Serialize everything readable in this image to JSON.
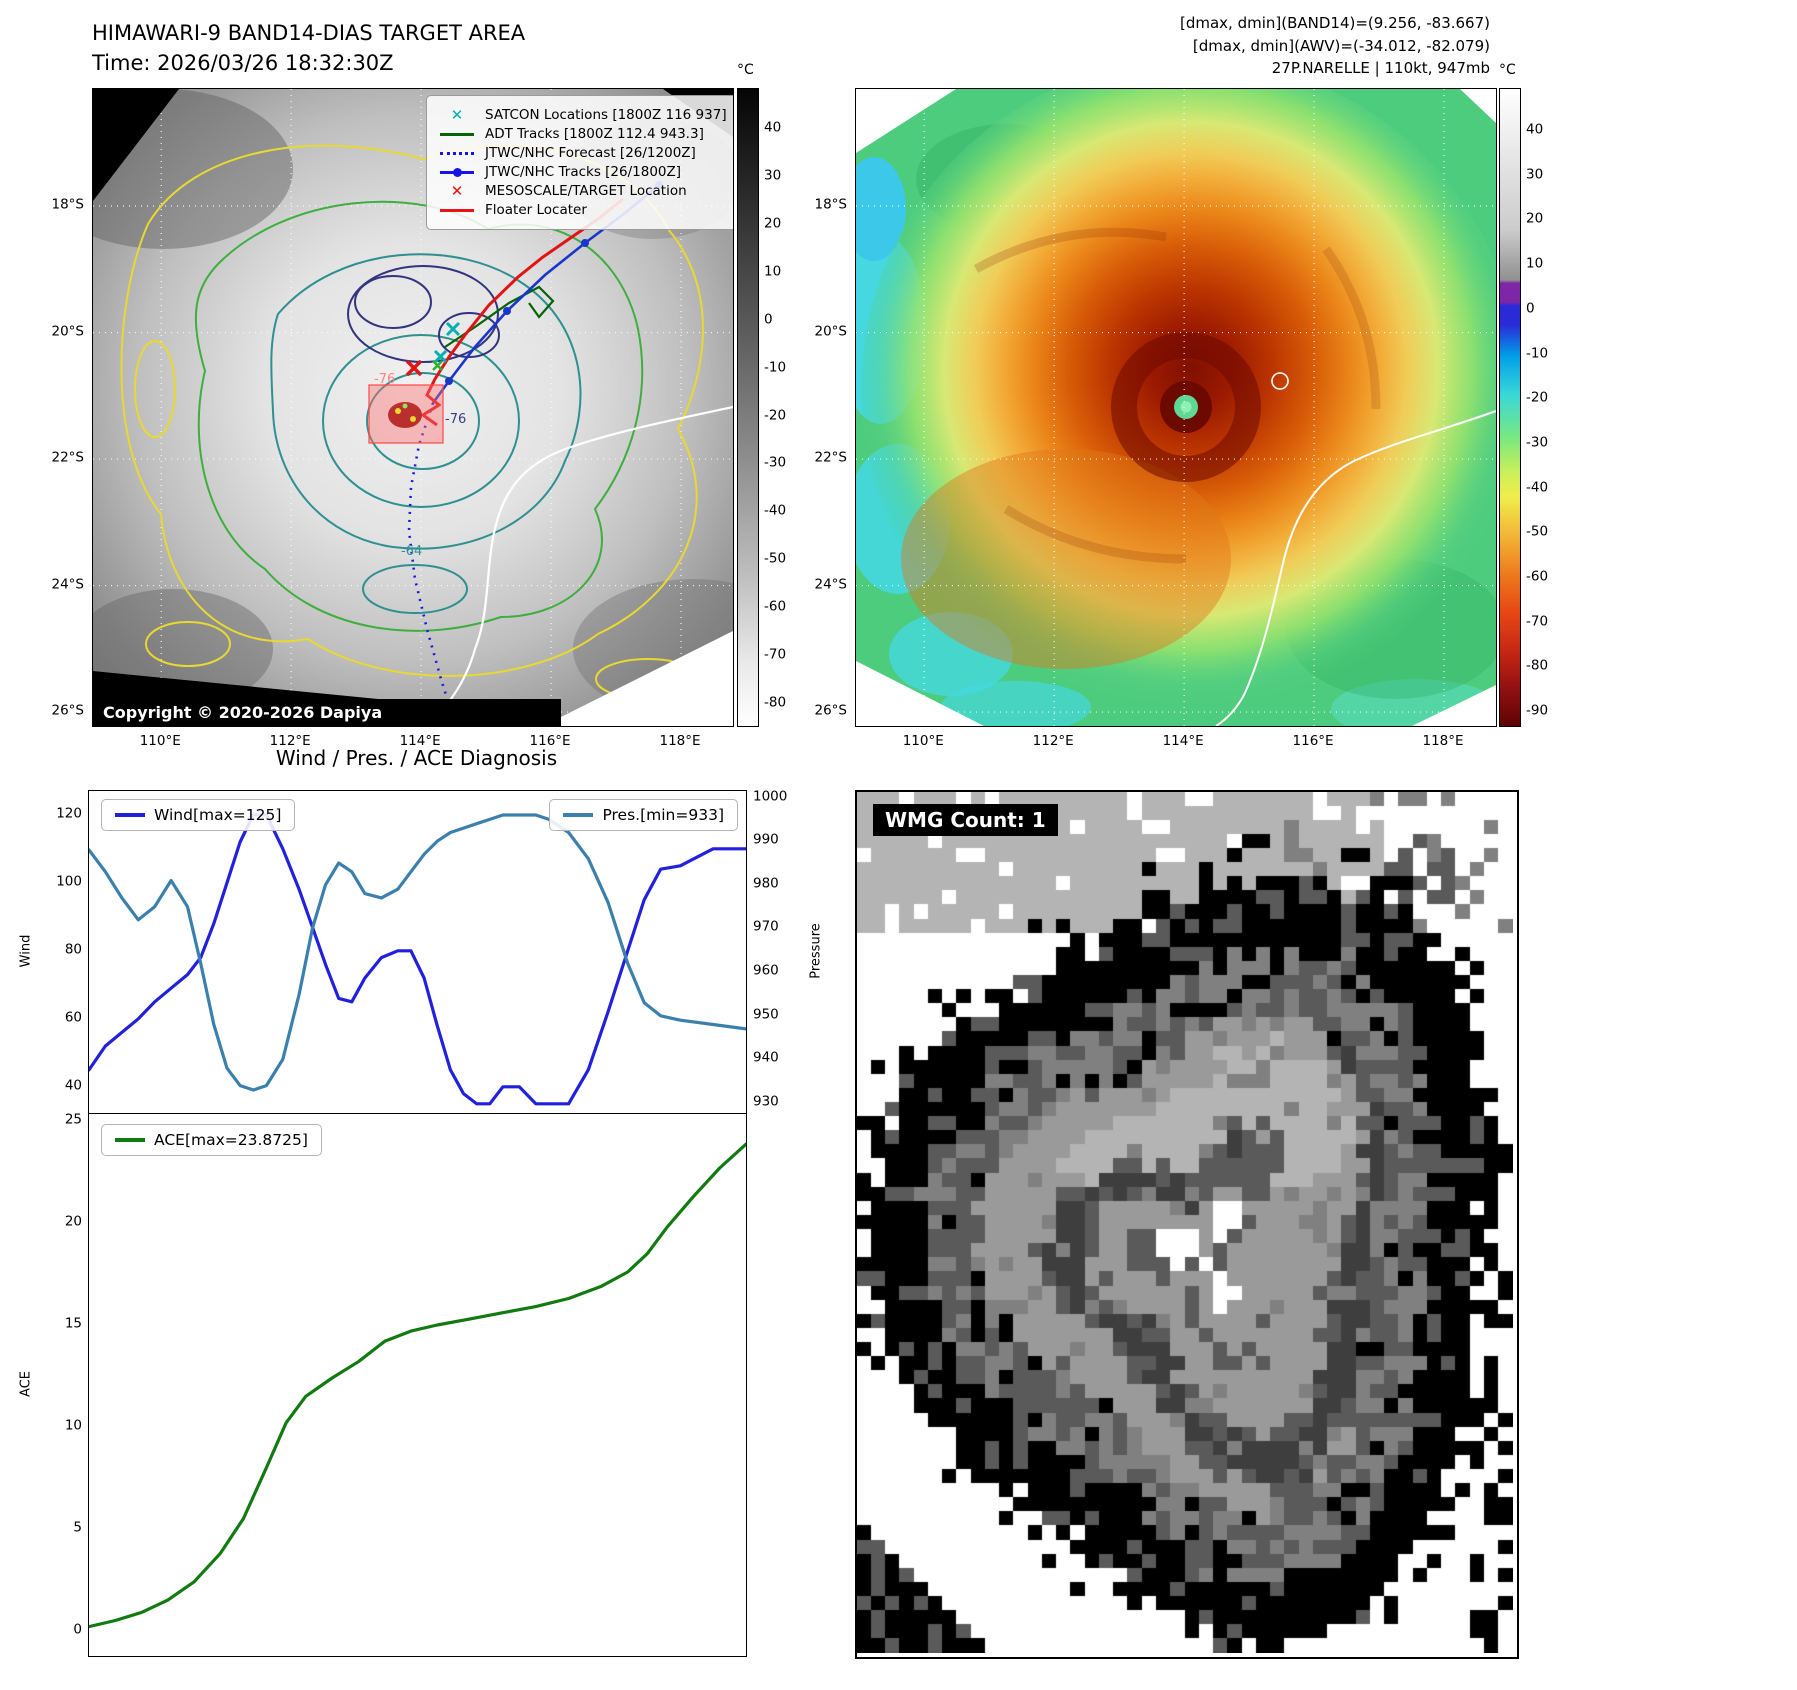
{
  "panel_tl": {
    "title": "HIMAWARI-9 BAND14-DIAS TARGET AREA",
    "subtitle": "Time: 2026/03/26 18:32:30Z",
    "copyright": "Copyright © 2020-2026 Dapiya",
    "legend": [
      {
        "label": "SATCON Locations [1800Z 116 937]",
        "marker": "x",
        "color": "#00b0b0"
      },
      {
        "label": "ADT Tracks [1800Z 112.4 943.3]",
        "marker": "line",
        "color": "#066306"
      },
      {
        "label": "JTWC/NHC Forecast [26/1200Z]",
        "marker": "dotted",
        "color": "#1414e6"
      },
      {
        "label": "JTWC/NHC Tracks [26/1800Z]",
        "marker": "linedot",
        "color": "#1414e6"
      },
      {
        "label": "MESOSCALE/TARGET Location",
        "marker": "x",
        "color": "#e61414"
      },
      {
        "label": "Floater Locater",
        "marker": "line",
        "color": "#e61414"
      }
    ],
    "annotations": {
      "a1": "-76",
      "a2": "-76",
      "a3": "-64"
    },
    "colorbar": {
      "unit": "°C",
      "ticks": [
        40,
        30,
        20,
        10,
        0,
        -10,
        -20,
        -30,
        -40,
        -50,
        -60,
        -70,
        -80
      ],
      "range": [
        48.4,
        -84.6
      ]
    },
    "lat": {
      "values": [
        18,
        20,
        22,
        24,
        26
      ],
      "labels": [
        "18°S",
        "20°S",
        "22°S",
        "24°S",
        "26°S"
      ],
      "range": [
        16.15,
        26.22
      ]
    },
    "lon": {
      "values": [
        110,
        112,
        114,
        116,
        118
      ],
      "labels": [
        "110°E",
        "112°E",
        "114°E",
        "116°E",
        "118°E"
      ],
      "range": [
        108.95,
        118.8
      ]
    }
  },
  "panel_tr": {
    "header1": "[dmax, dmin](BAND14)=(9.256, -83.667)",
    "header2": "[dmax, dmin](AWV)=(-34.012, -82.079)",
    "header3": "27P.NARELLE | 110kt, 947mb",
    "colorbar": {
      "unit": "°C",
      "ticks": [
        40,
        30,
        20,
        10,
        0,
        -10,
        -20,
        -30,
        -40,
        -50,
        -60,
        -70,
        -80,
        -90
      ],
      "range": [
        49.4,
        -93.1
      ]
    },
    "lat": {
      "values": [
        18,
        20,
        22,
        24,
        26
      ],
      "labels": [
        "18°S",
        "20°S",
        "22°S",
        "24°S",
        "26°S"
      ],
      "range": [
        16.15,
        26.22
      ]
    },
    "lon": {
      "values": [
        110,
        112,
        114,
        116,
        118
      ],
      "labels": [
        "110°E",
        "112°E",
        "114°E",
        "116°E",
        "118°E"
      ],
      "range": [
        108.95,
        118.8
      ]
    }
  },
  "chart_data": [
    {
      "type": "line",
      "title": "Wind / Pres. / ACE Diagnosis",
      "x": [
        0.0,
        0.025,
        0.05,
        0.075,
        0.1,
        0.125,
        0.15,
        0.17,
        0.19,
        0.21,
        0.23,
        0.25,
        0.27,
        0.295,
        0.32,
        0.34,
        0.36,
        0.38,
        0.4,
        0.42,
        0.445,
        0.47,
        0.49,
        0.51,
        0.53,
        0.55,
        0.57,
        0.59,
        0.61,
        0.63,
        0.655,
        0.68,
        0.7,
        0.73,
        0.76,
        0.79,
        0.82,
        0.845,
        0.87,
        0.9,
        0.95,
        1.0
      ],
      "series": [
        {
          "name": "Wind[max=125]",
          "color": "#2121dd",
          "axis": "left",
          "values": [
            45,
            52,
            56,
            60,
            65,
            69,
            73,
            78,
            88,
            100,
            112,
            120,
            120,
            110,
            98,
            87,
            76,
            66,
            65,
            72,
            78,
            80,
            80,
            72,
            58,
            45,
            38,
            35,
            35,
            40,
            40,
            35,
            35,
            35,
            45,
            62,
            80,
            95,
            104,
            105,
            110,
            110
          ]
        },
        {
          "name": "Pres.[min=933]",
          "color": "#3b80ad",
          "axis": "right",
          "values": [
            988,
            983,
            977,
            972,
            975,
            981,
            975,
            962,
            948,
            938,
            934,
            933,
            934,
            940,
            955,
            970,
            980,
            985,
            983,
            978,
            977,
            979,
            983,
            987,
            990,
            992,
            993,
            994,
            995,
            996,
            996,
            996,
            995,
            992,
            986,
            976,
            962,
            953,
            950,
            949,
            948,
            947
          ]
        }
      ],
      "left_axis": {
        "label": "Wind",
        "ticks": [
          120,
          100,
          80,
          60,
          40
        ],
        "range": [
          127,
          32
        ]
      },
      "right_axis": {
        "label": "Pressure",
        "ticks": [
          1000,
          990,
          980,
          970,
          960,
          950,
          940,
          930
        ],
        "range": [
          1001.5,
          927.5
        ]
      },
      "legend_position": "top-left / top-right"
    },
    {
      "type": "line",
      "x": [
        0.0,
        0.04,
        0.08,
        0.12,
        0.16,
        0.2,
        0.235,
        0.27,
        0.3,
        0.33,
        0.37,
        0.41,
        0.45,
        0.49,
        0.53,
        0.58,
        0.63,
        0.68,
        0.73,
        0.78,
        0.82,
        0.85,
        0.88,
        0.92,
        0.96,
        1.0
      ],
      "series": [
        {
          "name": "ACE[max=23.8725]",
          "color": "#117a11",
          "axis": "left",
          "values": [
            0.2,
            0.5,
            0.9,
            1.5,
            2.4,
            3.8,
            5.5,
            8.0,
            10.2,
            11.5,
            12.4,
            13.2,
            14.2,
            14.7,
            15.0,
            15.3,
            15.6,
            15.9,
            16.3,
            16.9,
            17.6,
            18.5,
            19.8,
            21.3,
            22.7,
            23.87
          ]
        }
      ],
      "left_axis": {
        "label": "ACE",
        "ticks": [
          25,
          20,
          15,
          10,
          5,
          0
        ],
        "range": [
          25.35,
          -1.24
        ]
      },
      "legend_position": "top-left"
    }
  ],
  "wmg": {
    "label": "WMG Count: 1"
  }
}
